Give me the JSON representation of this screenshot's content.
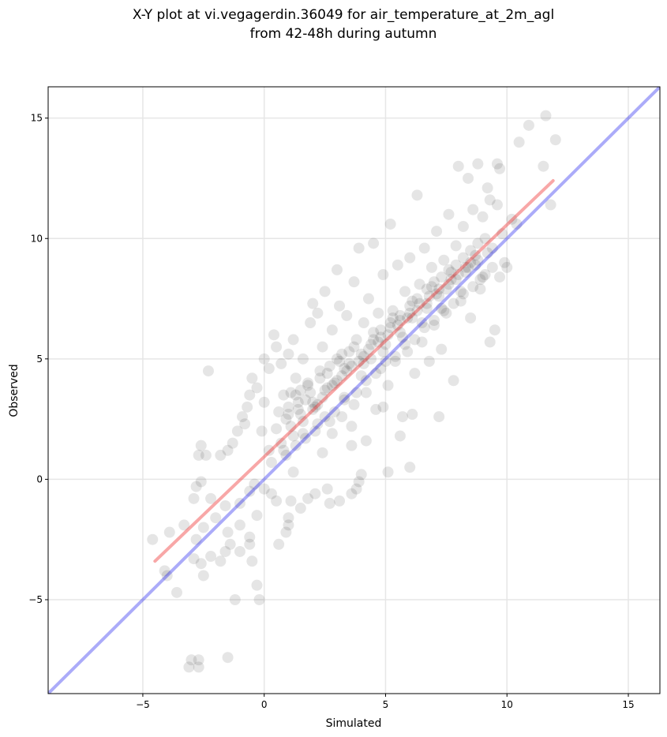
{
  "chart_data": {
    "type": "scatter",
    "title_line1": "X-Y plot at vi.vegagerdin.36049 for air_temperature_at_2m_agl",
    "title_line2": "from 42-48h during autumn",
    "xlabel": "Simulated",
    "ylabel": "Observed",
    "xlim": [
      -8.9,
      16.3
    ],
    "ylim": [
      -8.9,
      16.3
    ],
    "xticks": [
      -5,
      0,
      5,
      10,
      15
    ],
    "yticks": [
      -5,
      0,
      5,
      10,
      15
    ],
    "xtick_labels": [
      "−5",
      "0",
      "5",
      "10",
      "15"
    ],
    "ytick_labels": [
      "−5",
      "0",
      "5",
      "10",
      "15"
    ],
    "grid": true,
    "point_color": "#000000",
    "point_alpha": 0.1,
    "identity_line": {
      "color": "#0000ee",
      "x": [
        -8.9,
        16.3
      ],
      "y": [
        -8.9,
        16.3
      ]
    },
    "fit_line": {
      "color": "#ee2222",
      "x": [
        -4.5,
        11.9
      ],
      "y": [
        -3.4,
        12.4
      ]
    },
    "series": [
      {
        "points": [
          [
            -3.0,
            -7.5
          ],
          [
            -2.7,
            -7.5
          ],
          [
            -3.1,
            -7.8
          ],
          [
            -2.7,
            -7.8
          ],
          [
            -1.5,
            -7.4
          ],
          [
            -1.2,
            -5.0
          ],
          [
            -0.2,
            -5.0
          ],
          [
            -0.3,
            -4.4
          ],
          [
            -4.6,
            -2.5
          ],
          [
            -4.1,
            -3.8
          ],
          [
            -4.0,
            -4.0
          ],
          [
            -3.6,
            -4.7
          ],
          [
            -3.9,
            -2.2
          ],
          [
            -3.3,
            -1.9
          ],
          [
            -2.9,
            -3.3
          ],
          [
            -2.5,
            -4.0
          ],
          [
            -2.6,
            -3.5
          ],
          [
            -2.2,
            -3.2
          ],
          [
            -1.8,
            -3.4
          ],
          [
            -1.6,
            -3.0
          ],
          [
            -1.4,
            -2.7
          ],
          [
            -1.0,
            -3.0
          ],
          [
            -0.5,
            -3.4
          ],
          [
            -2.8,
            -2.5
          ],
          [
            -2.5,
            -2.0
          ],
          [
            -2.0,
            -1.6
          ],
          [
            -1.5,
            -2.2
          ],
          [
            -1.0,
            -1.9
          ],
          [
            -0.6,
            -2.4
          ],
          [
            -0.3,
            -1.5
          ],
          [
            -0.6,
            -2.7
          ],
          [
            0.6,
            -2.7
          ],
          [
            0.9,
            -2.2
          ],
          [
            1.0,
            -1.6
          ],
          [
            1.0,
            -1.9
          ],
          [
            -2.9,
            -0.8
          ],
          [
            -2.6,
            -0.1
          ],
          [
            -2.8,
            -0.3
          ],
          [
            -2.2,
            -0.8
          ],
          [
            -1.6,
            -1.1
          ],
          [
            -1.0,
            -1.0
          ],
          [
            -0.6,
            -0.5
          ],
          [
            -0.4,
            -0.2
          ],
          [
            0.0,
            -0.4
          ],
          [
            0.3,
            -0.6
          ],
          [
            0.5,
            -0.9
          ],
          [
            1.1,
            -0.9
          ],
          [
            1.5,
            -1.2
          ],
          [
            1.8,
            -0.8
          ],
          [
            2.1,
            -0.6
          ],
          [
            2.6,
            -0.4
          ],
          [
            3.1,
            -0.9
          ],
          [
            3.6,
            -0.6
          ],
          [
            3.8,
            -0.4
          ],
          [
            3.9,
            -0.1
          ],
          [
            2.7,
            -1.0
          ],
          [
            -2.7,
            1.0
          ],
          [
            -2.6,
            1.4
          ],
          [
            -2.4,
            1.0
          ],
          [
            -2.3,
            4.5
          ],
          [
            -1.8,
            1.0
          ],
          [
            -1.5,
            1.2
          ],
          [
            -1.3,
            1.5
          ],
          [
            -1.1,
            2.0
          ],
          [
            -0.9,
            2.6
          ],
          [
            -0.8,
            2.3
          ],
          [
            -0.7,
            3.0
          ],
          [
            -0.6,
            3.5
          ],
          [
            -0.5,
            4.2
          ],
          [
            -0.3,
            3.8
          ],
          [
            -0.1,
            2.0
          ],
          [
            0.0,
            5.0
          ],
          [
            0.0,
            3.2
          ],
          [
            0.2,
            4.6
          ],
          [
            0.4,
            6.0
          ],
          [
            0.5,
            5.5
          ],
          [
            0.6,
            2.8
          ],
          [
            0.7,
            4.8
          ],
          [
            0.8,
            3.5
          ],
          [
            0.9,
            2.5
          ],
          [
            1.0,
            5.2
          ],
          [
            1.1,
            3.6
          ],
          [
            1.2,
            5.8
          ],
          [
            1.3,
            4.2
          ],
          [
            1.4,
            2.9
          ],
          [
            1.5,
            3.7
          ],
          [
            1.6,
            5.0
          ],
          [
            1.7,
            3.3
          ],
          [
            1.8,
            4.0
          ],
          [
            1.9,
            6.5
          ],
          [
            2.0,
            7.3
          ],
          [
            2.1,
            3.0
          ],
          [
            2.2,
            6.9
          ],
          [
            2.3,
            4.5
          ],
          [
            2.4,
            5.5
          ],
          [
            2.5,
            7.8
          ],
          [
            2.6,
            3.8
          ],
          [
            2.7,
            2.4
          ],
          [
            2.8,
            6.2
          ],
          [
            2.9,
            4.0
          ],
          [
            3.0,
            8.7
          ],
          [
            3.1,
            7.2
          ],
          [
            3.2,
            5.2
          ],
          [
            3.3,
            3.3
          ],
          [
            3.4,
            6.8
          ],
          [
            3.5,
            4.8
          ],
          [
            3.6,
            2.2
          ],
          [
            3.7,
            8.2
          ],
          [
            3.8,
            5.8
          ],
          [
            3.9,
            9.6
          ],
          [
            4.0,
            4.3
          ],
          [
            4.1,
            6.5
          ],
          [
            4.2,
            3.6
          ],
          [
            4.3,
            7.5
          ],
          [
            4.4,
            5.0
          ],
          [
            4.5,
            9.8
          ],
          [
            4.6,
            2.9
          ],
          [
            4.7,
            6.9
          ],
          [
            4.8,
            4.6
          ],
          [
            4.9,
            8.5
          ],
          [
            5.0,
            5.6
          ],
          [
            5.1,
            3.9
          ],
          [
            5.2,
            10.6
          ],
          [
            5.3,
            7.0
          ],
          [
            5.4,
            4.9
          ],
          [
            5.5,
            8.9
          ],
          [
            5.6,
            6.1
          ],
          [
            5.7,
            2.6
          ],
          [
            5.8,
            7.8
          ],
          [
            5.9,
            5.3
          ],
          [
            6.0,
            9.2
          ],
          [
            6.1,
            6.7
          ],
          [
            6.2,
            4.4
          ],
          [
            6.3,
            11.8
          ],
          [
            6.4,
            8.1
          ],
          [
            6.5,
            5.7
          ],
          [
            6.6,
            9.6
          ],
          [
            6.7,
            7.1
          ],
          [
            6.8,
            4.9
          ],
          [
            6.9,
            8.8
          ],
          [
            7.0,
            6.4
          ],
          [
            7.1,
            10.3
          ],
          [
            7.2,
            7.6
          ],
          [
            7.3,
            5.4
          ],
          [
            7.4,
            9.1
          ],
          [
            7.5,
            6.9
          ],
          [
            7.6,
            11.0
          ],
          [
            7.7,
            8.3
          ],
          [
            7.8,
            4.1
          ],
          [
            7.9,
            9.7
          ],
          [
            8.0,
            13.0
          ],
          [
            8.1,
            7.4
          ],
          [
            8.2,
            10.5
          ],
          [
            8.3,
            8.8
          ],
          [
            8.4,
            12.5
          ],
          [
            8.5,
            6.7
          ],
          [
            8.6,
            11.2
          ],
          [
            8.7,
            9.3
          ],
          [
            8.8,
            13.1
          ],
          [
            8.9,
            7.9
          ],
          [
            9.0,
            10.9
          ],
          [
            9.1,
            8.5
          ],
          [
            9.2,
            12.1
          ],
          [
            9.3,
            5.7
          ],
          [
            9.4,
            9.6
          ],
          [
            9.5,
            6.2
          ],
          [
            9.6,
            11.4
          ],
          [
            9.7,
            8.4
          ],
          [
            9.8,
            10.2
          ],
          [
            9.9,
            9.0
          ],
          [
            10.0,
            8.8
          ],
          [
            10.2,
            10.8
          ],
          [
            10.5,
            14.0
          ],
          [
            10.9,
            14.7
          ],
          [
            11.5,
            13.0
          ],
          [
            11.6,
            15.1
          ],
          [
            11.8,
            11.4
          ],
          [
            12.0,
            14.1
          ],
          [
            10.4,
            10.6
          ],
          [
            9.6,
            13.1
          ],
          [
            9.7,
            12.9
          ],
          [
            9.3,
            11.6
          ],
          [
            7.2,
            2.6
          ],
          [
            6.0,
            0.5
          ],
          [
            5.1,
            0.3
          ],
          [
            4.2,
            1.6
          ],
          [
            5.6,
            1.8
          ],
          [
            6.1,
            2.7
          ],
          [
            4.9,
            3.0
          ],
          [
            4.0,
            0.2
          ],
          [
            3.6,
            1.4
          ],
          [
            2.4,
            1.1
          ],
          [
            0.3,
            0.7
          ],
          [
            0.8,
            1.2
          ],
          [
            1.2,
            0.3
          ],
          [
            1.7,
            1.7
          ],
          [
            2.2,
            2.3
          ],
          [
            2.8,
            1.9
          ],
          [
            3.2,
            2.6
          ],
          [
            3.7,
            3.1
          ],
          [
            0.5,
            2.1
          ],
          [
            1.0,
            2.7
          ],
          [
            1.4,
            3.2
          ],
          [
            1.9,
            3.6
          ],
          [
            2.3,
            4.2
          ],
          [
            2.7,
            4.7
          ],
          [
            3.1,
            4.9
          ],
          [
            3.5,
            5.3
          ],
          [
            4.1,
            5.1
          ],
          [
            4.5,
            5.8
          ],
          [
            4.8,
            6.2
          ],
          [
            5.2,
            6.5
          ],
          [
            5.6,
            6.8
          ],
          [
            6.0,
            7.2
          ],
          [
            6.3,
            7.5
          ],
          [
            6.7,
            7.9
          ],
          [
            7.0,
            8.2
          ],
          [
            7.3,
            8.4
          ],
          [
            7.6,
            8.7
          ],
          [
            7.9,
            8.9
          ],
          [
            8.2,
            9.2
          ],
          [
            8.5,
            9.5
          ],
          [
            8.8,
            9.8
          ],
          [
            9.1,
            10.0
          ],
          [
            1.2,
            1.8
          ],
          [
            1.6,
            2.4
          ],
          [
            2.0,
            2.9
          ],
          [
            2.4,
            3.4
          ],
          [
            2.8,
            3.9
          ],
          [
            3.2,
            4.3
          ],
          [
            3.6,
            4.7
          ],
          [
            4.0,
            5.2
          ],
          [
            4.4,
            5.6
          ],
          [
            4.8,
            5.9
          ],
          [
            5.2,
            6.3
          ],
          [
            5.6,
            6.6
          ],
          [
            6.0,
            6.9
          ],
          [
            6.4,
            7.3
          ],
          [
            6.8,
            7.6
          ],
          [
            7.2,
            7.9
          ],
          [
            7.6,
            8.1
          ],
          [
            8.0,
            8.5
          ],
          [
            8.4,
            8.8
          ],
          [
            8.8,
            9.1
          ],
          [
            9.2,
            9.4
          ],
          [
            0.2,
            1.2
          ],
          [
            0.7,
            1.5
          ],
          [
            1.1,
            2.2
          ],
          [
            1.5,
            2.7
          ],
          [
            2.0,
            3.2
          ],
          [
            2.5,
            3.7
          ],
          [
            3.0,
            4.1
          ],
          [
            3.4,
            4.5
          ],
          [
            3.9,
            4.9
          ],
          [
            4.3,
            5.4
          ],
          [
            4.7,
            5.7
          ],
          [
            5.1,
            6.0
          ],
          [
            5.5,
            6.4
          ],
          [
            5.9,
            6.7
          ],
          [
            6.3,
            7.0
          ],
          [
            6.7,
            7.3
          ],
          [
            7.1,
            7.7
          ],
          [
            7.5,
            7.9
          ],
          [
            7.9,
            8.3
          ],
          [
            8.3,
            8.6
          ],
          [
            8.7,
            8.9
          ],
          [
            1.0,
            3.0
          ],
          [
            1.3,
            3.5
          ],
          [
            1.8,
            3.9
          ],
          [
            2.2,
            3.1
          ],
          [
            2.6,
            4.4
          ],
          [
            3.0,
            5.0
          ],
          [
            3.3,
            4.6
          ],
          [
            3.7,
            5.5
          ],
          [
            4.1,
            4.8
          ],
          [
            4.5,
            6.1
          ],
          [
            4.9,
            5.3
          ],
          [
            5.3,
            6.7
          ],
          [
            5.7,
            5.9
          ],
          [
            6.1,
            7.4
          ],
          [
            6.5,
            6.5
          ],
          [
            6.9,
            8.0
          ],
          [
            7.3,
            7.1
          ],
          [
            7.7,
            8.6
          ],
          [
            8.1,
            7.8
          ],
          [
            8.5,
            9.0
          ],
          [
            8.9,
            8.3
          ],
          [
            0.9,
            1.0
          ],
          [
            1.3,
            1.4
          ],
          [
            1.6,
            1.9
          ],
          [
            2.1,
            2.0
          ],
          [
            2.5,
            2.6
          ],
          [
            2.9,
            2.8
          ],
          [
            3.3,
            3.4
          ],
          [
            3.8,
            3.6
          ],
          [
            4.2,
            4.1
          ],
          [
            4.6,
            4.4
          ],
          [
            5.0,
            4.9
          ],
          [
            5.4,
            5.1
          ],
          [
            5.8,
            5.6
          ],
          [
            6.2,
            5.8
          ],
          [
            6.6,
            6.3
          ],
          [
            7.0,
            6.6
          ],
          [
            7.4,
            7.0
          ],
          [
            7.8,
            7.3
          ],
          [
            8.2,
            7.7
          ],
          [
            8.6,
            8.0
          ],
          [
            9.0,
            8.4
          ],
          [
            9.4,
            8.8
          ]
        ]
      }
    ]
  }
}
